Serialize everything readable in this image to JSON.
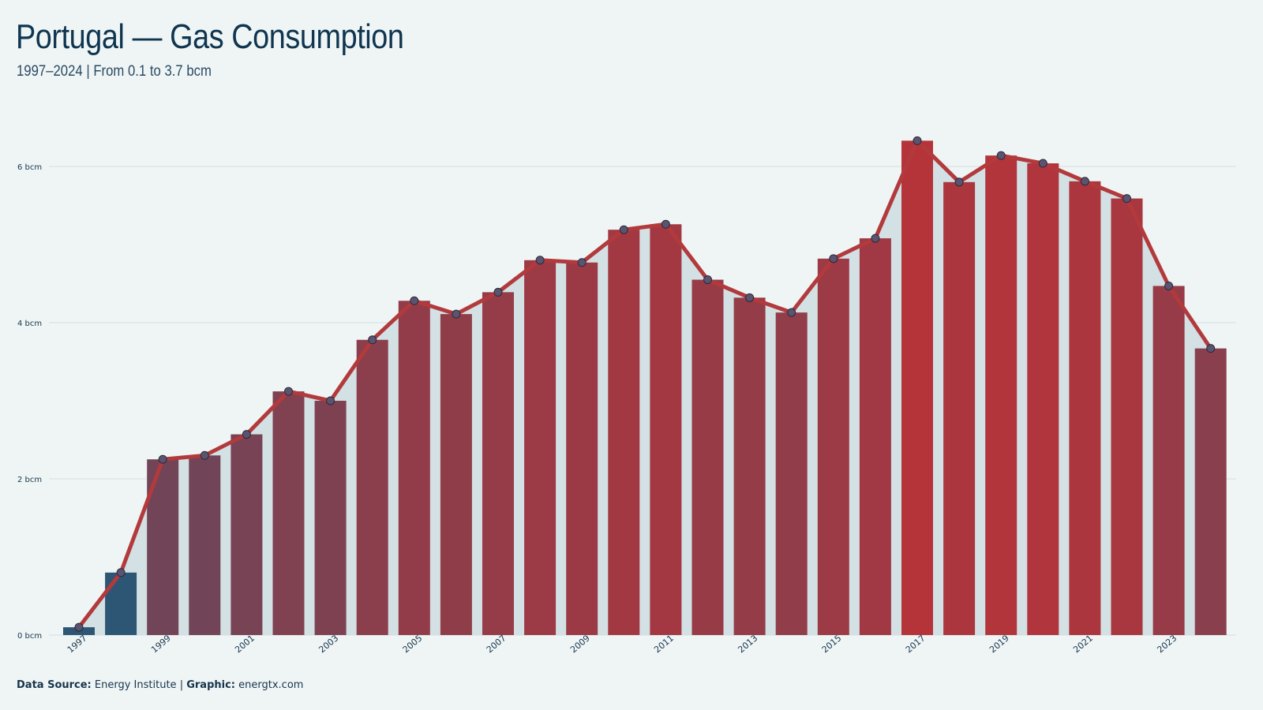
{
  "title": "Portugal — Gas Consumption",
  "subtitle": "1997–2024 | From 0.1 to 3.7 bcm",
  "footer": {
    "source_label": "Data Source:",
    "source_value": "Energy Institute",
    "separator": "|",
    "graphic_label": "Graphic:",
    "graphic_value": "energtx.com"
  },
  "colors": {
    "background": "#eff5f5",
    "area_fill": "#d3e1e4",
    "line": "#b23a3c",
    "low_bar": "#2d5574",
    "high_bar": "#b5343a",
    "marker": "#5a5470"
  },
  "chart_data": {
    "type": "bar",
    "overlay": "line",
    "unit": "bcm",
    "categories": [
      "1997",
      "1998",
      "1999",
      "2000",
      "2001",
      "2002",
      "2003",
      "2004",
      "2005",
      "2006",
      "2007",
      "2008",
      "2009",
      "2010",
      "2011",
      "2012",
      "2013",
      "2014",
      "2015",
      "2016",
      "2017",
      "2018",
      "2019",
      "2020",
      "2021",
      "2022",
      "2023",
      "2024"
    ],
    "values": [
      0.1,
      0.8,
      2.25,
      2.3,
      2.57,
      3.12,
      3.0,
      3.78,
      4.28,
      4.11,
      4.39,
      4.8,
      4.77,
      5.19,
      5.26,
      4.55,
      4.32,
      4.13,
      4.82,
      5.08,
      6.33,
      5.8,
      6.14,
      6.04,
      5.81,
      5.59,
      4.47,
      3.67
    ],
    "x_tick_labels": [
      "1997",
      "1999",
      "2001",
      "2003",
      "2005",
      "2007",
      "2009",
      "2011",
      "2013",
      "2015",
      "2017",
      "2019",
      "2021",
      "2023"
    ],
    "y_ticks": [
      {
        "value": 0,
        "label": "0 bcm"
      },
      {
        "value": 2,
        "label": "2 bcm"
      },
      {
        "value": 4,
        "label": "4 bcm"
      },
      {
        "value": 6,
        "label": "6 bcm"
      }
    ],
    "ylim": [
      0,
      6.7
    ],
    "grid": "horizontal"
  }
}
